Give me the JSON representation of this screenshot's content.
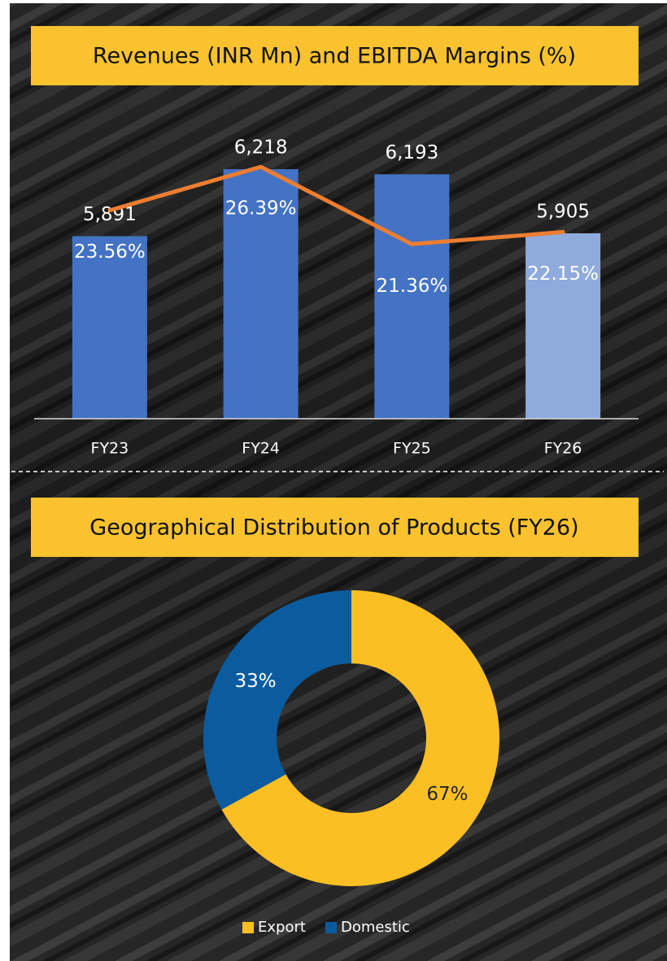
{
  "chart_data": [
    {
      "type": "bar",
      "title": "Revenues (INR Mn) and EBITDA Margins (%)",
      "categories": [
        "FY23",
        "FY24",
        "FY25",
        "FY26"
      ],
      "series": [
        {
          "type": "bar",
          "values": [
            5891,
            6218,
            6193,
            5905
          ],
          "value_labels": [
            "5,891",
            "6,218",
            "6,193",
            "5,905"
          ],
          "colors": [
            "#4472c4",
            "#4472c4",
            "#4472c4",
            "#8faadc"
          ]
        },
        {
          "type": "line",
          "axis": "y2",
          "values": [
            23.56,
            26.39,
            21.36,
            22.15
          ],
          "value_labels": [
            "23.56%",
            "26.39%",
            "21.36%",
            "22.15%"
          ],
          "color": "#ed7d31"
        }
      ],
      "ylim": [
        5000,
        6500
      ],
      "y2lim": [
        10,
        30
      ]
    },
    {
      "type": "pie",
      "title": "Geographical Distribution of Products (FY26)",
      "categories": [
        "Export",
        "Domestic"
      ],
      "values": [
        67,
        33
      ],
      "value_labels": [
        "67%",
        "33%"
      ],
      "colors": [
        "#fbbf24",
        "#0b5c9e"
      ],
      "donut": true,
      "legend": "bottom"
    }
  ]
}
